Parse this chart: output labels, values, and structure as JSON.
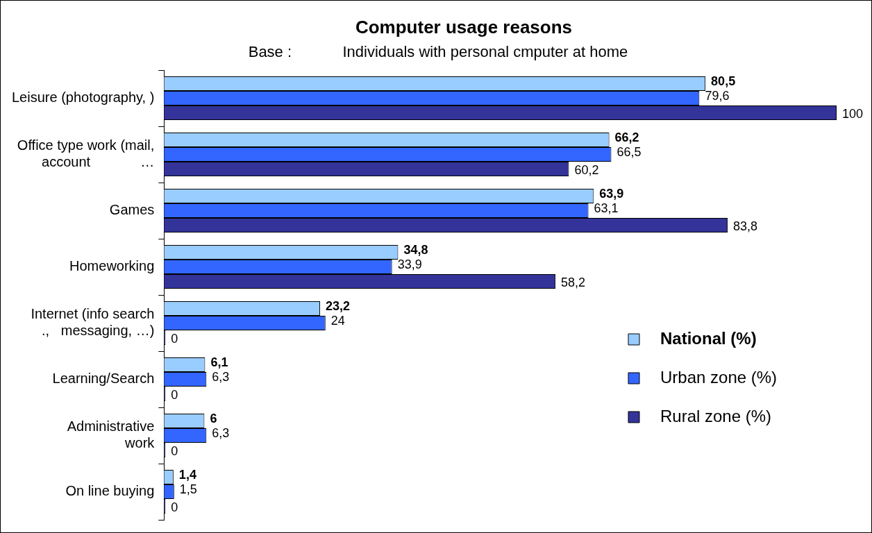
{
  "chart_data": {
    "type": "bar",
    "orientation": "horizontal",
    "title": "Computer usage reasons",
    "subtitle": "Base :            Individuals with personal cmputer at home",
    "categories": [
      "Leisure (photography, )",
      "Office type work (mail,\naccount             …",
      "Games",
      "Homeworking",
      "Internet (info search\n.,   messaging, …)",
      "Learning/Search",
      "Administrative\nwork",
      "On line buying"
    ],
    "series": [
      {
        "name": "National (%)",
        "color": "#99ccff",
        "values": [
          80.5,
          66.2,
          63.9,
          34.8,
          23.2,
          6.1,
          6,
          1.4
        ],
        "value_labels": [
          "80,5",
          "66,2",
          "63,9",
          "34,8",
          "23,2",
          "6,1",
          "6",
          "1,4"
        ]
      },
      {
        "name": "Urban zone (%)",
        "color": "#3366ff",
        "values": [
          79.6,
          66.5,
          63.1,
          33.9,
          24,
          6.3,
          6.3,
          1.5
        ],
        "value_labels": [
          "79,6",
          "66,5",
          "63,1",
          "33,9",
          "24",
          "6,3",
          "6,3",
          "1,5"
        ]
      },
      {
        "name": "Rural zone (%)",
        "color": "#333399",
        "values": [
          100,
          60.2,
          83.8,
          58.2,
          0,
          0,
          0,
          0
        ],
        "value_labels": [
          "100",
          "60,2",
          "83,8",
          "58,2",
          "0",
          "0",
          "0",
          "0"
        ]
      }
    ],
    "legend": "bottom right",
    "grid": false
  }
}
